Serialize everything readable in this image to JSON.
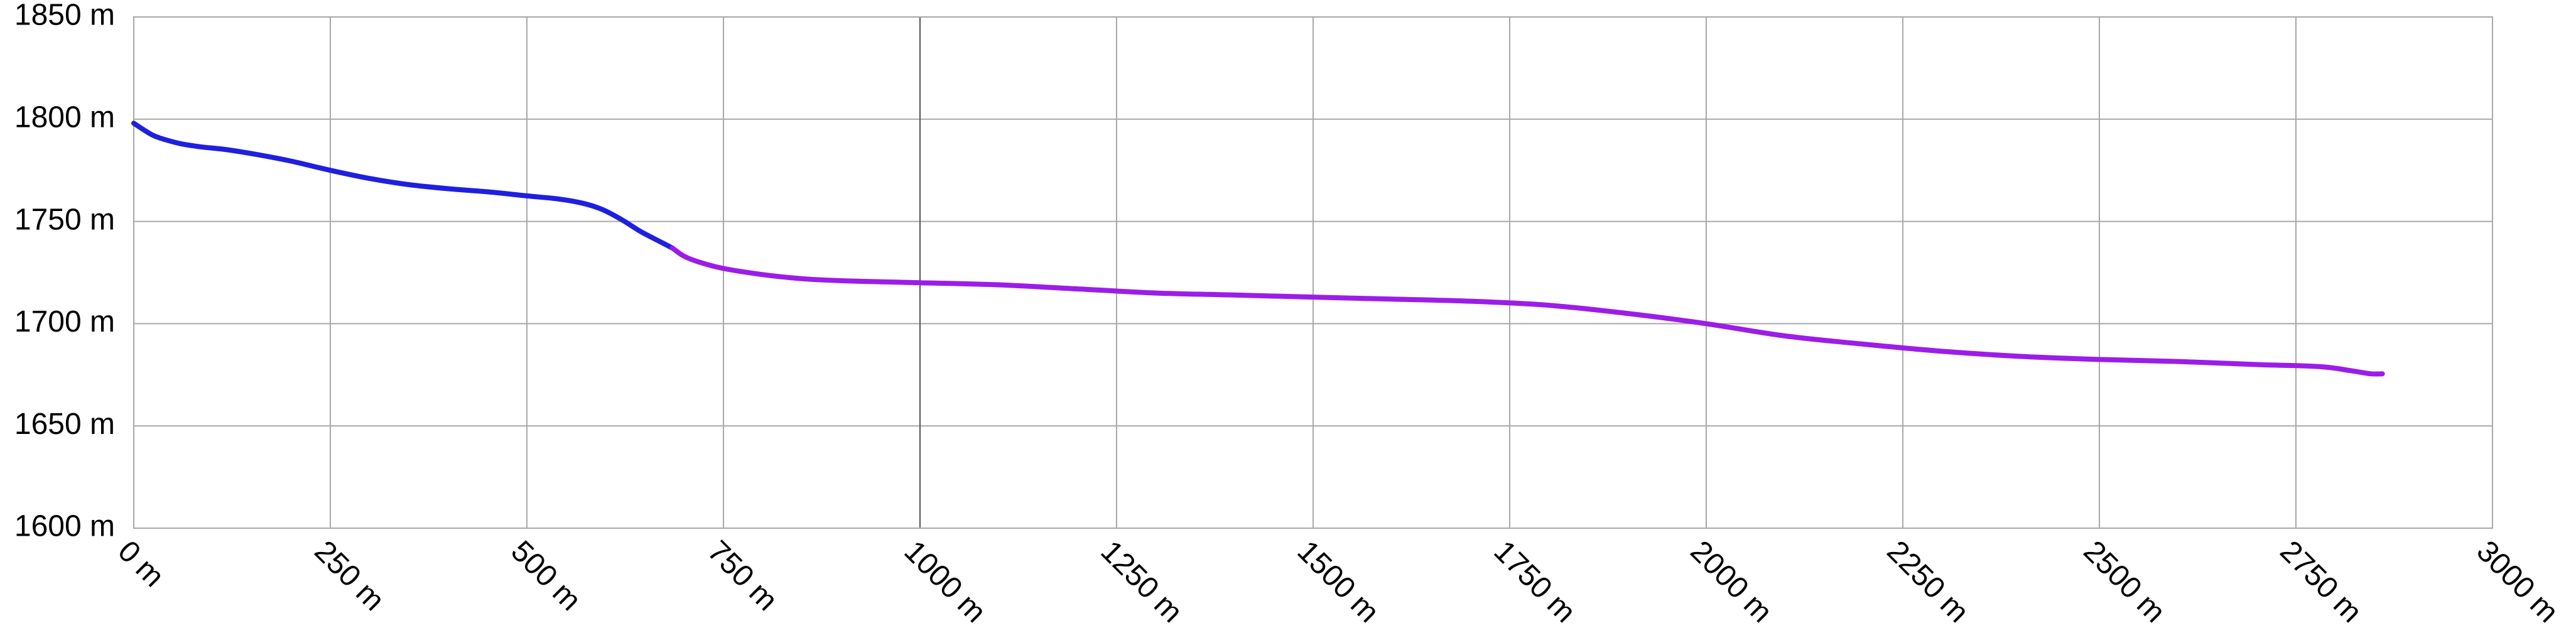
{
  "chart_data": {
    "type": "line",
    "title": "",
    "xlabel": "",
    "ylabel": "",
    "x_unit": "m",
    "y_unit": "m",
    "xlim": [
      0,
      3000
    ],
    "ylim": [
      1600,
      1850
    ],
    "x_ticks": [
      0,
      250,
      500,
      750,
      1000,
      1250,
      1500,
      1750,
      2000,
      2250,
      2500,
      2750,
      3000
    ],
    "y_ticks": [
      1600,
      1650,
      1700,
      1750,
      1800,
      1850
    ],
    "x_tick_labels": [
      "0 m",
      "250 m",
      "500 m",
      "750 m",
      "1000 m",
      "1250 m",
      "1500 m",
      "1750 m",
      "2000 m",
      "2250 m",
      "2500 m",
      "2750 m",
      "3000 m"
    ],
    "y_tick_labels": [
      "1600 m",
      "1650 m",
      "1700 m",
      "1750 m",
      "1800 m",
      "1850 m"
    ],
    "x_tick_rotation_deg": 45,
    "major_x_gridline": 1000,
    "grid": true,
    "legend": "none",
    "series": [
      {
        "color": "#1f1fe0",
        "points": [
          [
            0,
            1798
          ],
          [
            12,
            1795
          ],
          [
            25,
            1792
          ],
          [
            40,
            1790
          ],
          [
            60,
            1788
          ],
          [
            85,
            1786.5
          ],
          [
            120,
            1785
          ],
          [
            160,
            1782.5
          ],
          [
            200,
            1779.5
          ],
          [
            250,
            1775
          ],
          [
            300,
            1771
          ],
          [
            350,
            1768
          ],
          [
            400,
            1766
          ],
          [
            450,
            1764.5
          ],
          [
            500,
            1762.5
          ],
          [
            540,
            1761
          ],
          [
            570,
            1759
          ],
          [
            595,
            1756
          ],
          [
            620,
            1751
          ],
          [
            645,
            1745
          ],
          [
            670,
            1740
          ],
          [
            685,
            1737
          ]
        ]
      },
      {
        "color": "#9b1de8",
        "points": [
          [
            685,
            1737
          ],
          [
            700,
            1733
          ],
          [
            720,
            1730
          ],
          [
            750,
            1727
          ],
          [
            800,
            1724
          ],
          [
            850,
            1722
          ],
          [
            900,
            1721
          ],
          [
            950,
            1720.5
          ],
          [
            1000,
            1720
          ],
          [
            1100,
            1719
          ],
          [
            1200,
            1717
          ],
          [
            1300,
            1715
          ],
          [
            1400,
            1714
          ],
          [
            1500,
            1713
          ],
          [
            1600,
            1712
          ],
          [
            1700,
            1711
          ],
          [
            1800,
            1709
          ],
          [
            1900,
            1705
          ],
          [
            2000,
            1700
          ],
          [
            2100,
            1694
          ],
          [
            2200,
            1690
          ],
          [
            2300,
            1686.5
          ],
          [
            2400,
            1684
          ],
          [
            2500,
            1682.5
          ],
          [
            2600,
            1681.5
          ],
          [
            2700,
            1680
          ],
          [
            2780,
            1679
          ],
          [
            2820,
            1677
          ],
          [
            2845,
            1675.5
          ],
          [
            2860,
            1675.5
          ]
        ]
      }
    ]
  }
}
